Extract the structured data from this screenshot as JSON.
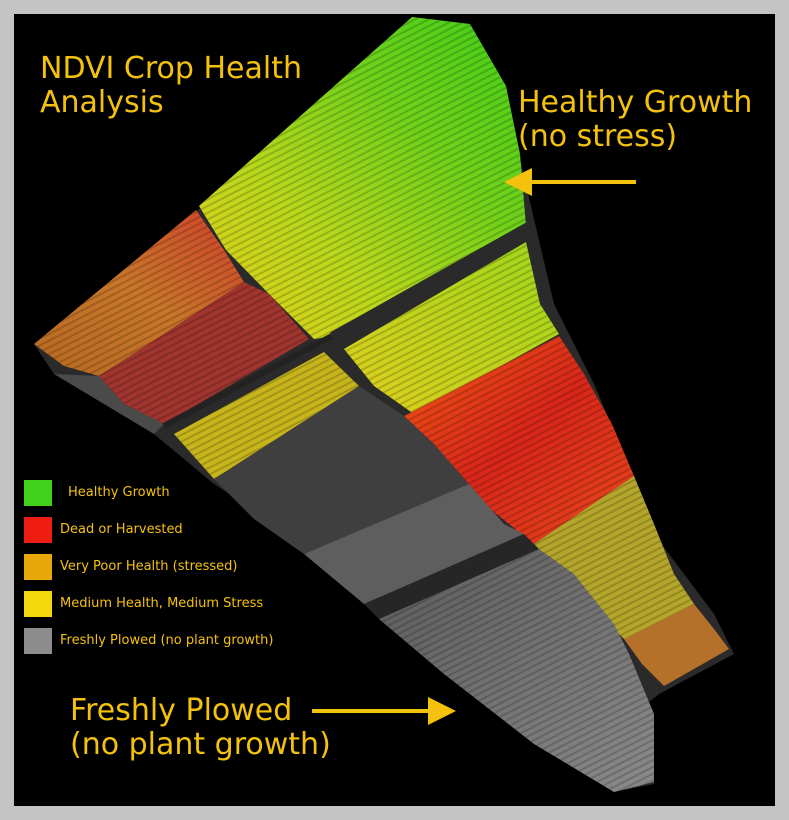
{
  "title": {
    "line1": "NDVI Crop Health",
    "line2": "Analysis"
  },
  "callouts": {
    "healthy": {
      "line1": "Healthy Growth",
      "line2": "(no stress)"
    },
    "plowed": {
      "line1": "Freshly Plowed",
      "line2": "(no plant growth)"
    }
  },
  "legend": [
    {
      "label": "Healthy Growth",
      "color": "#3fd11b"
    },
    {
      "label": "Dead or Harvested",
      "color": "#ef1c12"
    },
    {
      "label": "Very Poor Health (stressed)",
      "color": "#e8a80a"
    },
    {
      "label": "Medium Health, Medium Stress",
      "color": "#f2d80c"
    },
    {
      "label": "Freshly Plowed (no plant growth)",
      "color": "#8c8c8c"
    }
  ],
  "colors": {
    "text": "#f4c20d",
    "arrow": "#f4c20d",
    "background": "#000000",
    "frame": "#c4c4c4"
  }
}
